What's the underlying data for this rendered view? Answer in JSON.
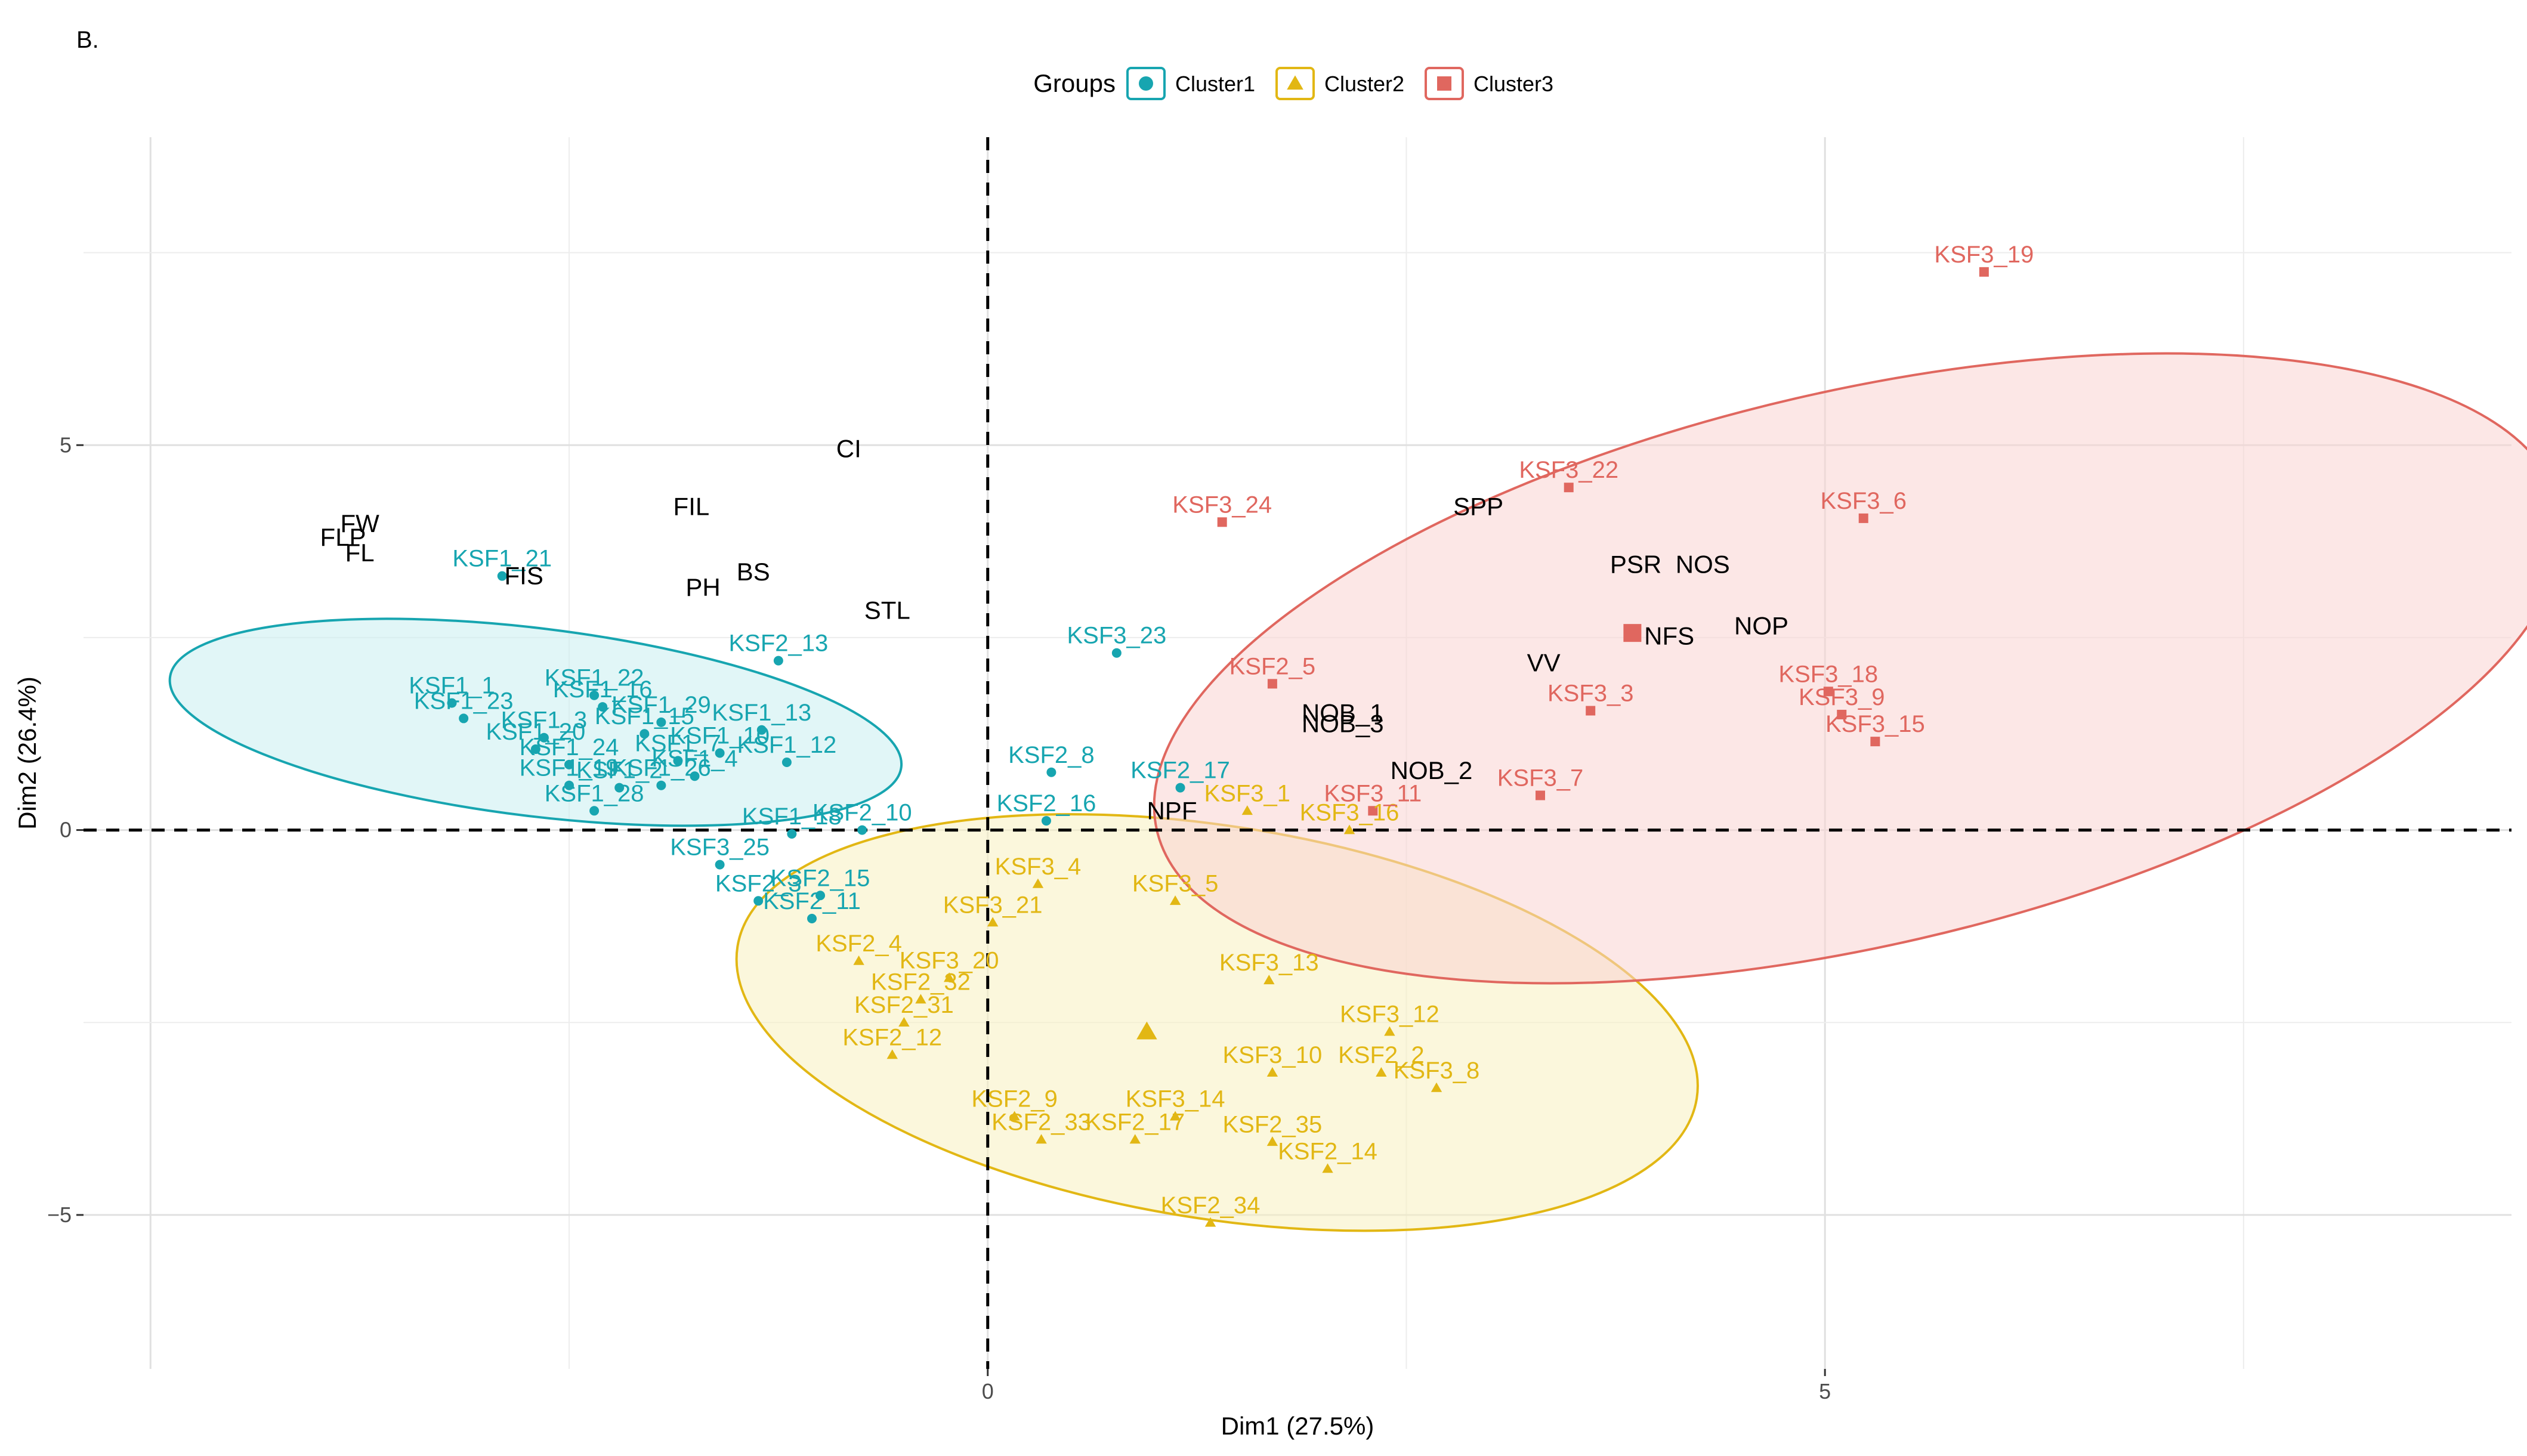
{
  "panel_label": "B.",
  "chart_data": {
    "type": "scatter",
    "subtype": "PCA biplot with cluster confidence ellipses",
    "xlabel": "Dim1 (27.5%)",
    "ylabel": "Dim2 (26.4%)",
    "xlim": [
      -5.4,
      9.1
    ],
    "ylim": [
      -7.0,
      9.0
    ],
    "x_ticks": [
      0,
      5
    ],
    "x_tick_labels": [
      "0",
      "5"
    ],
    "y_ticks": [
      5,
      0,
      -5
    ],
    "y_tick_labels": [
      "5",
      "0",
      "−5"
    ],
    "grid": true,
    "reference_lines": {
      "x": 0,
      "y": 0,
      "style": "dashed"
    },
    "legend": {
      "title": "Groups",
      "position": "top",
      "entries": [
        {
          "name": "Cluster1",
          "marker": "circle",
          "color": "#17A5B0"
        },
        {
          "name": "Cluster2",
          "marker": "triangle",
          "color": "#E2B714"
        },
        {
          "name": "Cluster3",
          "marker": "square",
          "color": "#E0675F"
        }
      ]
    },
    "colors": {
      "Cluster1": "#17A5B0",
      "Cluster2": "#E2B714",
      "Cluster3": "#E0675F",
      "variables": "#000000"
    },
    "ellipses": [
      {
        "group": "Cluster1",
        "cx": -2.7,
        "cy": 1.4,
        "rx": 2.2,
        "ry": 1.22,
        "angle_deg": -7,
        "fill": "#C8EEF1",
        "stroke": "#17A5B0"
      },
      {
        "group": "Cluster2",
        "cx": 1.37,
        "cy": -2.5,
        "rx": 2.9,
        "ry": 2.55,
        "angle_deg": -9,
        "fill": "#F8F0C0",
        "stroke": "#E2B714"
      },
      {
        "group": "Cluster3",
        "cx": 5.2,
        "cy": 2.1,
        "rx": 4.3,
        "ry": 3.6,
        "angle_deg": 13,
        "fill": "#F9D4D1",
        "stroke": "#E0675F"
      }
    ],
    "centroids": [
      {
        "group": "Cluster2",
        "x": 0.95,
        "y": -2.62
      },
      {
        "group": "Cluster3",
        "x": 3.85,
        "y": 2.56
      }
    ],
    "series": [
      {
        "name": "Cluster1",
        "points": [
          {
            "label": "KSF1_21",
            "x": -2.9,
            "y": 3.3
          },
          {
            "label": "KSF1_1",
            "x": -3.2,
            "y": 1.65
          },
          {
            "label": "KSF1_23",
            "x": -3.13,
            "y": 1.45
          },
          {
            "label": "KSF1_22",
            "x": -2.35,
            "y": 1.75
          },
          {
            "label": "KSF1_16",
            "x": -2.3,
            "y": 1.6
          },
          {
            "label": "KSF1_3",
            "x": -2.65,
            "y": 1.2
          },
          {
            "label": "KSF1_20",
            "x": -2.7,
            "y": 1.05
          },
          {
            "label": "KSF1_29",
            "x": -1.95,
            "y": 1.4
          },
          {
            "label": "KSF1_15",
            "x": -2.05,
            "y": 1.25
          },
          {
            "label": "KSF1_13",
            "x": -1.35,
            "y": 1.3
          },
          {
            "label": "KSF1_12",
            "x": -1.2,
            "y": 0.88
          },
          {
            "label": "KSF1_10",
            "x": -1.6,
            "y": 1.0
          },
          {
            "label": "KSF1_24",
            "x": -2.5,
            "y": 0.85
          },
          {
            "label": "KSF1_26",
            "x": -1.95,
            "y": 0.58
          },
          {
            "label": "KSF1_19",
            "x": -2.5,
            "y": 0.58
          },
          {
            "label": "KSF1_2",
            "x": -2.2,
            "y": 0.55
          },
          {
            "label": "KSF1_7",
            "x": -1.85,
            "y": 0.9
          },
          {
            "label": "KSF1_4",
            "x": -1.75,
            "y": 0.7
          },
          {
            "label": "KSF1_28",
            "x": -2.35,
            "y": 0.25
          },
          {
            "label": "KSF1_18",
            "x": -1.17,
            "y": -0.05
          },
          {
            "label": "KSF2_13",
            "x": -1.25,
            "y": 2.2
          },
          {
            "label": "KSF2_10",
            "x": -0.75,
            "y": 0.0
          },
          {
            "label": "KSF2_8",
            "x": 0.38,
            "y": 0.75
          },
          {
            "label": "KSF2_16",
            "x": 0.35,
            "y": 0.12
          },
          {
            "label": "KSF2_17",
            "x": 1.15,
            "y": 0.55
          },
          {
            "label": "KSF2_3",
            "x": -1.37,
            "y": -0.92
          },
          {
            "label": "KSF2_15",
            "x": -1.0,
            "y": -0.85
          },
          {
            "label": "KSF2_11",
            "x": -1.05,
            "y": -1.15
          },
          {
            "label": "KSF3_23",
            "x": 0.77,
            "y": 2.3
          },
          {
            "label": "KSF3_25",
            "x": -1.6,
            "y": -0.45
          }
        ]
      },
      {
        "name": "Cluster2",
        "points": [
          {
            "label": "KSF3_1",
            "x": 1.55,
            "y": 0.25
          },
          {
            "label": "KSF3_16",
            "x": 2.16,
            "y": 0.0
          },
          {
            "label": "KSF3_4",
            "x": 0.3,
            "y": -0.7
          },
          {
            "label": "KSF3_5",
            "x": 1.12,
            "y": -0.92
          },
          {
            "label": "KSF3_21",
            "x": 0.03,
            "y": -1.2
          },
          {
            "label": "KSF2_4",
            "x": -0.77,
            "y": -1.7
          },
          {
            "label": "KSF3_20",
            "x": -0.23,
            "y": -1.92
          },
          {
            "label": "KSF2_32",
            "x": -0.4,
            "y": -2.2
          },
          {
            "label": "KSF2_31",
            "x": -0.5,
            "y": -2.5
          },
          {
            "label": "KSF2_12",
            "x": -0.57,
            "y": -2.92
          },
          {
            "label": "KSF3_13",
            "x": 1.68,
            "y": -1.95
          },
          {
            "label": "KSF3_12",
            "x": 2.4,
            "y": -2.62
          },
          {
            "label": "KSF3_10",
            "x": 1.7,
            "y": -3.15
          },
          {
            "label": "KSF2_2",
            "x": 2.35,
            "y": -3.15
          },
          {
            "label": "KSF3_8",
            "x": 2.68,
            "y": -3.35
          },
          {
            "label": "KSF2_9",
            "x": 0.16,
            "y": -3.72
          },
          {
            "label": "KSF3_14",
            "x": 1.12,
            "y": -3.72
          },
          {
            "label": "KSF2_33",
            "x": 0.32,
            "y": -4.02
          },
          {
            "label": "KSF2_17",
            "x": 0.88,
            "y": -4.02
          },
          {
            "label": "KSF2_35",
            "x": 1.7,
            "y": -4.05
          },
          {
            "label": "KSF2_14",
            "x": 2.03,
            "y": -4.4
          },
          {
            "label": "KSF2_34",
            "x": 1.33,
            "y": -5.1
          }
        ]
      },
      {
        "name": "Cluster3",
        "points": [
          {
            "label": "KSF3_19",
            "x": 5.95,
            "y": 7.25
          },
          {
            "label": "KSF3_22",
            "x": 3.47,
            "y": 4.45
          },
          {
            "label": "KSF3_6",
            "x": 5.23,
            "y": 4.05
          },
          {
            "label": "KSF3_24",
            "x": 1.4,
            "y": 4.0
          },
          {
            "label": "KSF2_5",
            "x": 1.7,
            "y": 1.9
          },
          {
            "label": "KSF3_3",
            "x": 3.6,
            "y": 1.55
          },
          {
            "label": "KSF3_18",
            "x": 5.02,
            "y": 1.8
          },
          {
            "label": "KSF3_9",
            "x": 5.1,
            "y": 1.5
          },
          {
            "label": "KSF3_15",
            "x": 5.3,
            "y": 1.15
          },
          {
            "label": "KSF3_7",
            "x": 3.3,
            "y": 0.45
          },
          {
            "label": "KSF3_11",
            "x": 2.3,
            "y": 0.25
          }
        ]
      }
    ],
    "variables": [
      {
        "label": "CI",
        "x": -0.83,
        "y": 4.95
      },
      {
        "label": "FIL",
        "x": -1.77,
        "y": 4.2
      },
      {
        "label": "FW",
        "x": -3.75,
        "y": 3.98
      },
      {
        "label": "FLP",
        "x": -3.85,
        "y": 3.8
      },
      {
        "label": "FL",
        "x": -3.75,
        "y": 3.6
      },
      {
        "label": "FIS",
        "x": -2.77,
        "y": 3.3
      },
      {
        "label": "PH",
        "x": -1.7,
        "y": 3.15
      },
      {
        "label": "BS",
        "x": -1.4,
        "y": 3.35
      },
      {
        "label": "STL",
        "x": -0.6,
        "y": 2.85
      },
      {
        "label": "SPP",
        "x": 2.93,
        "y": 4.2
      },
      {
        "label": "PSR",
        "x": 3.87,
        "y": 3.45
      },
      {
        "label": "NOS",
        "x": 4.27,
        "y": 3.45
      },
      {
        "label": "NFS",
        "x": 4.07,
        "y": 2.52
      },
      {
        "label": "NOP",
        "x": 4.62,
        "y": 2.65
      },
      {
        "label": "VV",
        "x": 3.32,
        "y": 2.17
      },
      {
        "label": "NOB_1",
        "x": 2.12,
        "y": 1.52
      },
      {
        "label": "NOB_3",
        "x": 2.12,
        "y": 1.38
      },
      {
        "label": "NOB_2",
        "x": 2.65,
        "y": 0.77
      },
      {
        "label": "NPF",
        "x": 1.1,
        "y": 0.25
      }
    ]
  }
}
